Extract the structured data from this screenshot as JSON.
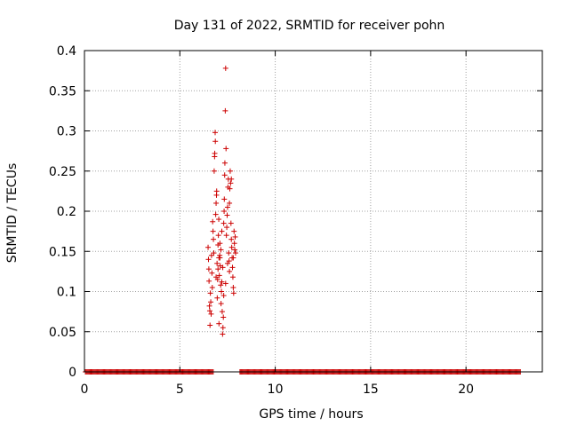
{
  "chart_data": {
    "type": "scatter",
    "title": "Day 131 of 2022, SRMTID for receiver pohn",
    "xlabel": "GPS time / hours",
    "ylabel": "SRMTID / TECUs",
    "xlim": [
      0,
      24
    ],
    "ylim": [
      0,
      0.4
    ],
    "x_ticks": [
      0,
      5,
      10,
      15,
      20
    ],
    "x_tick_labels": [
      "0",
      "5",
      "10",
      "15",
      "20"
    ],
    "y_ticks": [
      0,
      0.05,
      0.1,
      0.15,
      0.2,
      0.25,
      0.3,
      0.35,
      0.4
    ],
    "y_tick_labels": [
      "0",
      "0.05",
      "0.1",
      "0.15",
      "0.2",
      "0.25",
      "0.3",
      "0.35",
      "0.4"
    ],
    "grid": true,
    "marker": "+",
    "series": [
      {
        "name": "SRMTID",
        "color": "#cc0000",
        "zero_segments": [
          [
            0.05,
            6.75
          ],
          [
            8.15,
            22.85
          ]
        ],
        "points": [
          [
            6.48,
            0.155
          ],
          [
            6.5,
            0.14
          ],
          [
            6.52,
            0.128
          ],
          [
            6.53,
            0.113
          ],
          [
            6.55,
            0.082
          ],
          [
            6.57,
            0.076
          ],
          [
            6.58,
            0.058
          ],
          [
            6.6,
            0.098
          ],
          [
            6.62,
            0.087
          ],
          [
            6.64,
            0.072
          ],
          [
            6.66,
            0.145
          ],
          [
            6.68,
            0.123
          ],
          [
            6.7,
            0.105
          ],
          [
            6.72,
            0.187
          ],
          [
            6.74,
            0.175
          ],
          [
            6.76,
            0.165
          ],
          [
            6.78,
            0.148
          ],
          [
            6.8,
            0.25
          ],
          [
            6.82,
            0.268
          ],
          [
            6.83,
            0.272
          ],
          [
            6.85,
            0.298
          ],
          [
            6.86,
            0.287
          ],
          [
            6.88,
            0.196
          ],
          [
            6.9,
            0.21
          ],
          [
            6.92,
            0.22
          ],
          [
            6.93,
            0.225
          ],
          [
            6.95,
            0.135
          ],
          [
            6.96,
            0.092
          ],
          [
            6.98,
            0.115
          ],
          [
            7.0,
            0.158
          ],
          [
            7.02,
            0.17
          ],
          [
            7.04,
            0.19
          ],
          [
            7.05,
            0.06
          ],
          [
            7.07,
            0.12
          ],
          [
            7.09,
            0.145
          ],
          [
            7.1,
            0.16
          ],
          [
            7.12,
            0.132
          ],
          [
            7.14,
            0.108
          ],
          [
            7.16,
            0.085
          ],
          [
            7.18,
            0.1
          ],
          [
            7.2,
            0.112
          ],
          [
            7.22,
            0.075
          ],
          [
            7.24,
            0.047
          ],
          [
            7.26,
            0.055
          ],
          [
            7.28,
            0.068
          ],
          [
            7.3,
            0.185
          ],
          [
            7.32,
            0.2
          ],
          [
            7.33,
            0.215
          ],
          [
            7.35,
            0.245
          ],
          [
            7.36,
            0.26
          ],
          [
            7.38,
            0.325
          ],
          [
            7.4,
            0.378
          ],
          [
            7.42,
            0.278
          ],
          [
            7.44,
            0.17
          ],
          [
            7.46,
            0.18
          ],
          [
            7.48,
            0.195
          ],
          [
            7.5,
            0.205
          ],
          [
            7.52,
            0.23
          ],
          [
            7.54,
            0.24
          ],
          [
            7.56,
            0.148
          ],
          [
            7.58,
            0.138
          ],
          [
            7.6,
            0.125
          ],
          [
            7.62,
            0.228
          ],
          [
            7.64,
            0.25
          ],
          [
            7.66,
            0.235
          ],
          [
            7.68,
            0.185
          ],
          [
            7.7,
            0.165
          ],
          [
            7.72,
            0.155
          ],
          [
            7.74,
            0.142
          ],
          [
            7.76,
            0.13
          ],
          [
            7.78,
            0.118
          ],
          [
            7.8,
            0.105
          ],
          [
            7.82,
            0.098
          ],
          [
            7.84,
            0.175
          ],
          [
            7.86,
            0.16
          ],
          [
            7.88,
            0.152
          ],
          [
            7.9,
            0.168
          ],
          [
            7.92,
            0.148
          ],
          [
            6.9,
            0.118
          ],
          [
            7.0,
            0.128
          ],
          [
            7.1,
            0.142
          ],
          [
            7.2,
            0.175
          ],
          [
            7.3,
            0.095
          ],
          [
            7.4,
            0.11
          ],
          [
            7.5,
            0.135
          ],
          [
            7.6,
            0.21
          ],
          [
            7.7,
            0.24
          ],
          [
            7.8,
            0.142
          ],
          [
            7.05,
            0.142
          ],
          [
            7.15,
            0.152
          ],
          [
            7.25,
            0.13
          ]
        ]
      }
    ]
  }
}
